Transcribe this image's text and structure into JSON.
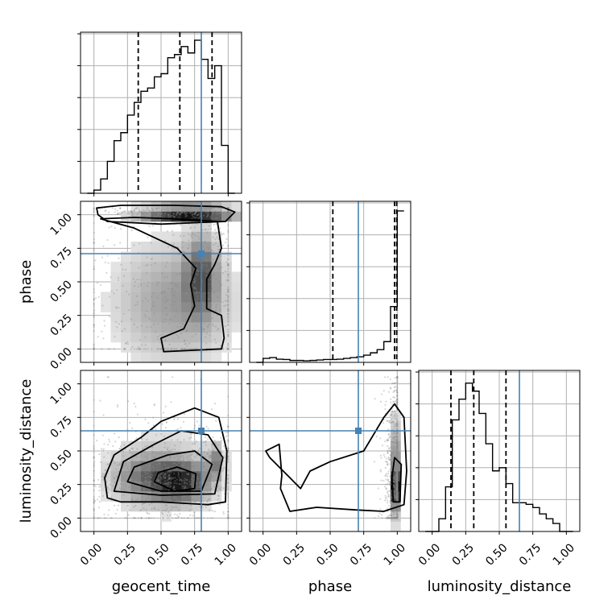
{
  "chart_data": {
    "type": "corner",
    "parameters": [
      "geocent_time",
      "phase",
      "luminosity_distance"
    ],
    "tick_values": [
      0.0,
      0.25,
      0.5,
      0.75,
      1.0
    ],
    "tick_labels": [
      "0.00",
      "0.25",
      "0.50",
      "0.75",
      "1.00"
    ],
    "axis_range": [
      -0.1,
      1.1
    ],
    "grid": true,
    "colors": {
      "truth": "#4682b4",
      "hist": "#000000",
      "contour": "#000000",
      "density_max": "#000000"
    },
    "truths": {
      "geocent_time": 0.8,
      "phase": 0.71,
      "luminosity_distance": 0.65
    },
    "histograms": [
      {
        "parameter": "geocent_time",
        "bin_edges": [
          -0.05,
          0.0,
          0.05,
          0.1,
          0.15,
          0.2,
          0.25,
          0.3,
          0.35,
          0.4,
          0.45,
          0.5,
          0.55,
          0.6,
          0.65,
          0.7,
          0.75,
          0.8,
          0.85,
          0.9,
          0.95,
          1.0,
          1.05
        ],
        "counts": [
          0,
          0.02,
          0.09,
          0.2,
          0.33,
          0.38,
          0.49,
          0.57,
          0.64,
          0.66,
          0.73,
          0.75,
          0.85,
          0.87,
          0.92,
          0.88,
          0.96,
          0.84,
          0.72,
          0.8,
          0.3,
          0
        ],
        "quantiles": [
          0.33,
          0.64,
          0.88
        ],
        "ylim": [
          0,
          1.0
        ]
      },
      {
        "parameter": "phase",
        "bin_edges": [
          -0.05,
          0.0,
          0.05,
          0.1,
          0.15,
          0.2,
          0.25,
          0.3,
          0.35,
          0.4,
          0.45,
          0.5,
          0.55,
          0.6,
          0.65,
          0.7,
          0.75,
          0.8,
          0.85,
          0.9,
          0.95,
          1.0,
          1.05
        ],
        "counts": [
          0,
          0.025,
          0.03,
          0.02,
          0.018,
          0.012,
          0.012,
          0.01,
          0.012,
          0.015,
          0.018,
          0.018,
          0.02,
          0.025,
          0.03,
          0.035,
          0.045,
          0.06,
          0.08,
          0.13,
          0.35,
          0.95
        ],
        "quantiles": [
          0.52,
          0.98,
          0.996
        ],
        "ylim": [
          0,
          1.0
        ]
      },
      {
        "parameter": "luminosity_distance",
        "bin_edges": [
          -0.05,
          0.0,
          0.05,
          0.1,
          0.15,
          0.2,
          0.25,
          0.3,
          0.35,
          0.4,
          0.45,
          0.5,
          0.55,
          0.6,
          0.65,
          0.7,
          0.75,
          0.8,
          0.85,
          0.9,
          0.95,
          1.0,
          1.05
        ],
        "counts": [
          0,
          0,
          0.08,
          0.28,
          0.7,
          0.83,
          0.93,
          0.88,
          0.74,
          0.55,
          0.38,
          0.4,
          0.3,
          0.18,
          0.18,
          0.17,
          0.15,
          0.11,
          0.08,
          0.05,
          0.0,
          0
        ],
        "quantiles": [
          0.14,
          0.31,
          0.55
        ],
        "ylim": [
          0,
          1.0
        ]
      }
    ],
    "scatter_panels": [
      {
        "x": "geocent_time",
        "y": "phase",
        "density_blobs": [
          {
            "cx": 0.7,
            "cy": 1.02,
            "sx": 0.22,
            "sy": 0.02,
            "w": 1.0
          },
          {
            "cx": 0.8,
            "cy": 0.55,
            "sx": 0.08,
            "sy": 0.2,
            "w": 0.15
          },
          {
            "cx": 0.6,
            "cy": 0.35,
            "sx": 0.3,
            "sy": 0.3,
            "w": 0.1
          }
        ],
        "contours": [
          [
            [
              0.02,
              1.05
            ],
            [
              0.2,
              1.07
            ],
            [
              0.6,
              1.07
            ],
            [
              0.95,
              1.06
            ],
            [
              1.05,
              1.02
            ],
            [
              0.98,
              0.95
            ],
            [
              0.5,
              0.93
            ],
            [
              0.1,
              0.95
            ],
            [
              0.03,
              1.0
            ],
            [
              0.02,
              1.05
            ]
          ],
          [
            [
              0.05,
              0.97
            ],
            [
              0.3,
              0.98
            ],
            [
              0.6,
              0.97
            ],
            [
              0.92,
              0.95
            ],
            [
              0.95,
              0.75
            ],
            [
              0.9,
              0.63
            ],
            [
              0.84,
              0.52
            ],
            [
              0.84,
              0.3
            ],
            [
              0.95,
              0.25
            ],
            [
              0.97,
              0.08
            ],
            [
              0.95,
              0.0
            ],
            [
              0.52,
              -0.02
            ],
            [
              0.5,
              0.08
            ],
            [
              0.67,
              0.15
            ],
            [
              0.75,
              0.32
            ],
            [
              0.72,
              0.48
            ],
            [
              0.76,
              0.6
            ],
            [
              0.62,
              0.75
            ],
            [
              0.3,
              0.9
            ],
            [
              0.05,
              0.97
            ]
          ]
        ]
      },
      {
        "x": "geocent_time",
        "y": "luminosity_distance",
        "density_blobs": [
          {
            "cx": 0.65,
            "cy": 0.27,
            "sx": 0.13,
            "sy": 0.09,
            "w": 1.0
          },
          {
            "cx": 0.4,
            "cy": 0.3,
            "sx": 0.18,
            "sy": 0.12,
            "w": 0.55
          },
          {
            "cx": 0.9,
            "cy": 0.42,
            "sx": 0.04,
            "sy": 0.08,
            "w": 0.6
          },
          {
            "cx": 0.55,
            "cy": 0.35,
            "sx": 0.3,
            "sy": 0.22,
            "w": 0.25
          }
        ],
        "contours": [
          [
            [
              0.1,
              0.15
            ],
            [
              0.2,
              0.12
            ],
            [
              0.5,
              0.12
            ],
            [
              0.85,
              0.1
            ],
            [
              0.98,
              0.12
            ],
            [
              0.99,
              0.5
            ],
            [
              0.93,
              0.75
            ],
            [
              0.75,
              0.82
            ],
            [
              0.5,
              0.72
            ],
            [
              0.35,
              0.6
            ],
            [
              0.15,
              0.47
            ],
            [
              0.08,
              0.3
            ],
            [
              0.1,
              0.15
            ]
          ],
          [
            [
              0.15,
              0.2
            ],
            [
              0.5,
              0.17
            ],
            [
              0.9,
              0.18
            ],
            [
              0.96,
              0.45
            ],
            [
              0.85,
              0.62
            ],
            [
              0.65,
              0.65
            ],
            [
              0.45,
              0.55
            ],
            [
              0.22,
              0.42
            ],
            [
              0.15,
              0.2
            ]
          ],
          [
            [
              0.25,
              0.27
            ],
            [
              0.5,
              0.2
            ],
            [
              0.8,
              0.2
            ],
            [
              0.88,
              0.4
            ],
            [
              0.75,
              0.5
            ],
            [
              0.55,
              0.47
            ],
            [
              0.3,
              0.38
            ],
            [
              0.25,
              0.27
            ]
          ],
          [
            [
              0.45,
              0.27
            ],
            [
              0.6,
              0.2
            ],
            [
              0.75,
              0.22
            ],
            [
              0.76,
              0.33
            ],
            [
              0.62,
              0.38
            ],
            [
              0.48,
              0.34
            ],
            [
              0.45,
              0.27
            ]
          ]
        ]
      },
      {
        "x": "phase",
        "y": "luminosity_distance",
        "density_blobs": [
          {
            "cx": 1.0,
            "cy": 0.22,
            "sx": 0.012,
            "sy": 0.08,
            "w": 1.0
          },
          {
            "cx": 0.99,
            "cy": 0.35,
            "sx": 0.04,
            "sy": 0.25,
            "w": 0.35
          }
        ],
        "contours": [
          [
            [
              0.02,
              0.5
            ],
            [
              0.12,
              0.55
            ],
            [
              0.14,
              0.32
            ],
            [
              0.13,
              0.22
            ],
            [
              0.2,
              0.05
            ],
            [
              0.4,
              0.08
            ],
            [
              0.7,
              0.06
            ],
            [
              0.9,
              0.05
            ],
            [
              1.05,
              0.1
            ],
            [
              1.07,
              0.35
            ],
            [
              1.05,
              0.75
            ],
            [
              0.98,
              0.85
            ],
            [
              0.9,
              0.75
            ],
            [
              0.75,
              0.5
            ],
            [
              0.5,
              0.42
            ],
            [
              0.35,
              0.35
            ],
            [
              0.28,
              0.22
            ],
            [
              0.2,
              0.3
            ],
            [
              0.05,
              0.45
            ],
            [
              0.02,
              0.5
            ]
          ],
          [
            [
              0.97,
              0.12
            ],
            [
              1.02,
              0.12
            ],
            [
              1.03,
              0.4
            ],
            [
              0.98,
              0.45
            ],
            [
              0.96,
              0.3
            ],
            [
              0.97,
              0.12
            ]
          ]
        ]
      }
    ]
  }
}
